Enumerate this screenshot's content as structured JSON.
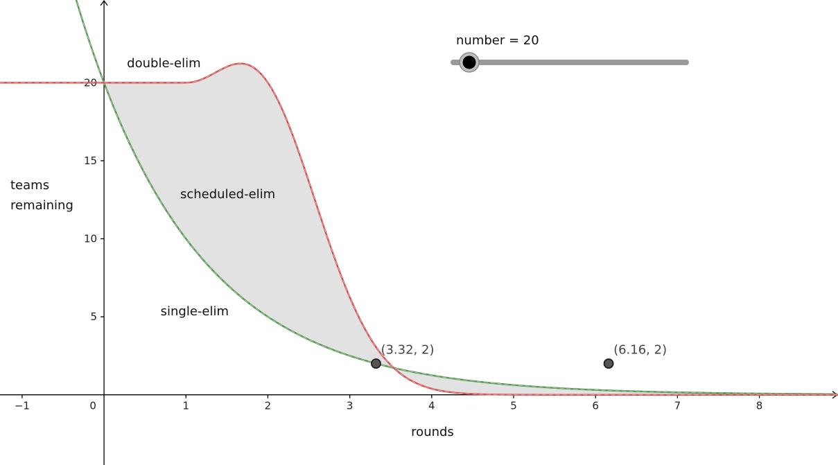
{
  "slider": {
    "label": "number = 20",
    "value": 20
  },
  "chart_data": {
    "type": "line",
    "xlabel": "rounds",
    "ylabel_lines": [
      "teams",
      "remaining"
    ],
    "xlim": [
      -1.27,
      8.96
    ],
    "ylim": [
      -4.5,
      25.3
    ],
    "x_ticks": [
      -1,
      0,
      1,
      2,
      3,
      4,
      5,
      6,
      7,
      8
    ],
    "y_ticks": [
      5,
      10,
      15,
      20
    ],
    "grid": false,
    "series": [
      {
        "name": "single-elim",
        "color": "#5a9a55",
        "formula": "20 * 2^(-x)",
        "label_at": [
          0.69,
          5.1
        ]
      },
      {
        "name": "double-elim",
        "color": "#d35555",
        "formula": "20 for x <= 1",
        "label_at": [
          0.28,
          21.0
        ]
      },
      {
        "name": "scheduled-elim",
        "color": "#d35555",
        "formula": "20 * (1 + t^2) * 2^(-t^2), t = x - 1, x >= 1",
        "label_at": [
          0.93,
          12.6
        ]
      }
    ],
    "shaded_region": {
      "between": [
        "single-elim",
        "scheduled-elim"
      ],
      "from_x": 0,
      "color": "#e2e2e2"
    },
    "points": [
      {
        "x": 3.32,
        "y": 2,
        "label": "(3.32, 2)"
      },
      {
        "x": 6.16,
        "y": 2,
        "label": "(6.16, 2)"
      }
    ]
  }
}
